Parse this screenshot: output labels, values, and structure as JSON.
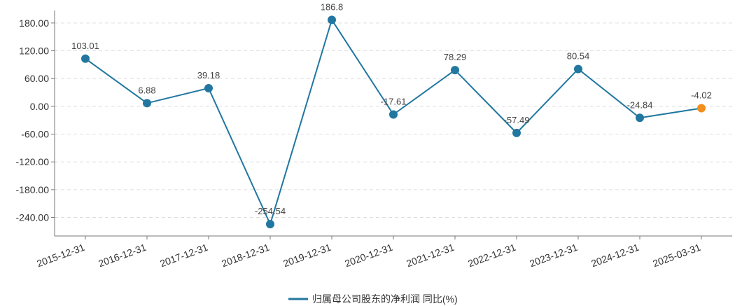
{
  "chart_data": {
    "type": "line",
    "categories": [
      "2015-12-31",
      "2016-12-31",
      "2017-12-31",
      "2018-12-31",
      "2019-12-31",
      "2020-12-31",
      "2021-12-31",
      "2022-12-31",
      "2023-12-31",
      "2024-12-31",
      "2025-03-31"
    ],
    "series": [
      {
        "name": "归属母公司股东的净利润 同比(%)",
        "color": "#21779f",
        "values": [
          103.01,
          6.88,
          39.18,
          -254.54,
          186.8,
          -17.61,
          78.29,
          -57.49,
          80.54,
          -24.84,
          -4.02
        ],
        "marker_colors": [
          "#21779f",
          "#21779f",
          "#21779f",
          "#21779f",
          "#21779f",
          "#21779f",
          "#21779f",
          "#21779f",
          "#21779f",
          "#21779f",
          "#f28e1c"
        ]
      }
    ],
    "ylim": [
      -280,
      207
    ],
    "yticks": [
      {
        "value": -240,
        "label": "-240.00"
      },
      {
        "value": -180,
        "label": "-180.00"
      },
      {
        "value": -120,
        "label": "-120.00"
      },
      {
        "value": -60,
        "label": "-60.00"
      },
      {
        "value": 0,
        "label": "0.00"
      },
      {
        "value": 60,
        "label": "60.00"
      },
      {
        "value": 120,
        "label": "120.00"
      },
      {
        "value": 180,
        "label": "180.00"
      }
    ],
    "grid": true
  }
}
